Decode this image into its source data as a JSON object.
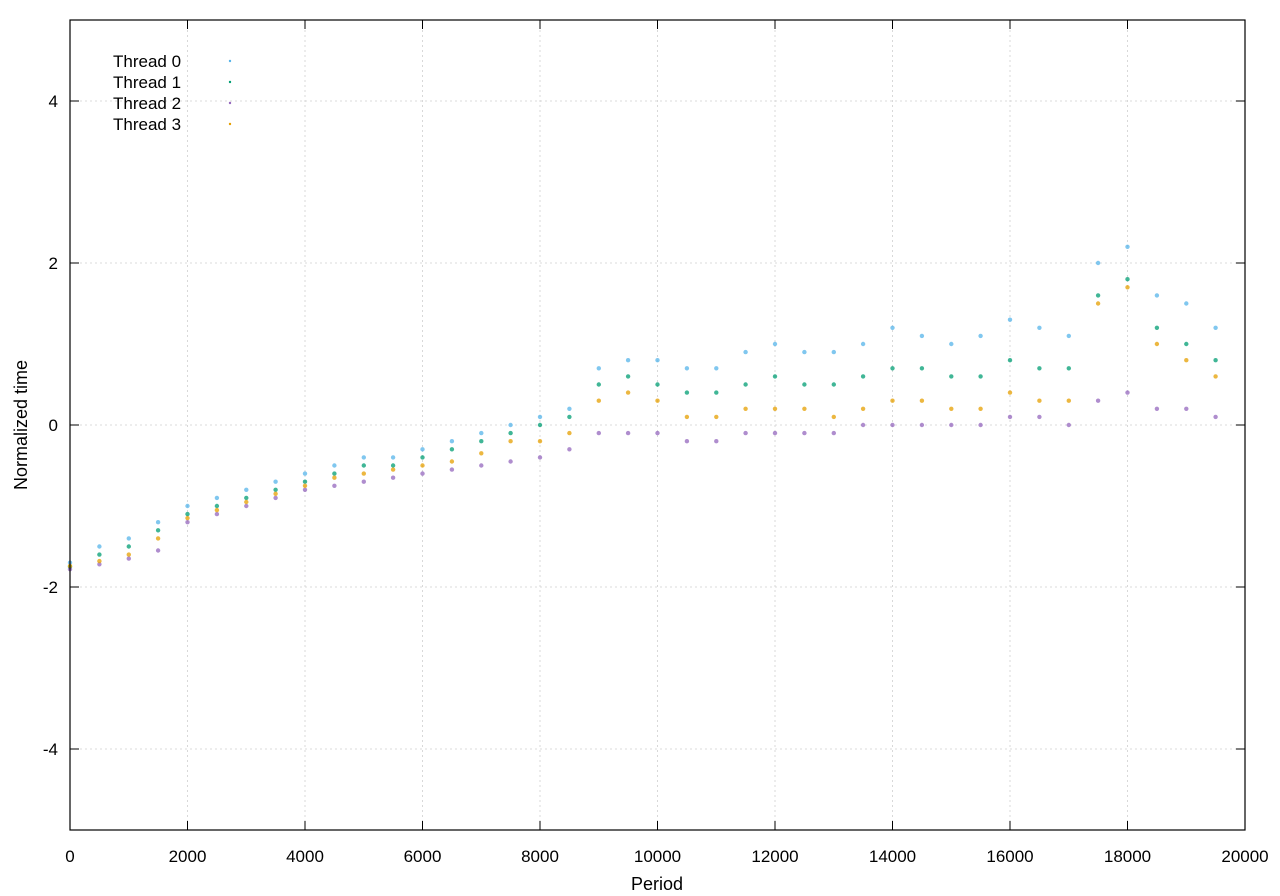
{
  "chart_data": {
    "type": "scatter",
    "title": "",
    "xlabel": "Period",
    "ylabel": "Normalized time",
    "xlim": [
      0,
      20000
    ],
    "ylim": [
      -5,
      5
    ],
    "xticks": [
      0,
      2000,
      4000,
      6000,
      8000,
      10000,
      12000,
      14000,
      16000,
      18000,
      20000
    ],
    "yticks": [
      -4,
      -2,
      0,
      2,
      4
    ],
    "xtick_labels": [
      "0",
      "2000",
      "4000",
      "6000",
      "8000",
      "10000",
      "12000",
      "14000",
      "16000",
      "18000",
      "20000"
    ],
    "ytick_labels": [
      "-4",
      "-2",
      "0",
      "2",
      "4"
    ],
    "grid": true,
    "legend_position": "top-left",
    "series": [
      {
        "name": "Thread 0",
        "color": "#56b4e9",
        "x": [
          0,
          500,
          1000,
          1500,
          2000,
          2500,
          3000,
          3500,
          4000,
          4500,
          5000,
          5500,
          6000,
          6500,
          7000,
          7500,
          8000,
          8500,
          9000,
          9500,
          10000,
          10500,
          11000,
          11500,
          12000,
          12500,
          13000,
          13500,
          14000,
          14500,
          15000,
          15500,
          16000,
          16500,
          17000,
          17500,
          18000,
          18500,
          19000,
          19500
        ],
        "y": [
          -1.7,
          -1.5,
          -1.4,
          -1.2,
          -1.0,
          -0.9,
          -0.8,
          -0.7,
          -0.6,
          -0.5,
          -0.4,
          -0.4,
          -0.3,
          -0.2,
          -0.1,
          0.0,
          0.1,
          0.2,
          0.7,
          0.8,
          0.8,
          0.7,
          0.7,
          0.9,
          1.0,
          0.9,
          0.9,
          1.0,
          1.2,
          1.1,
          1.0,
          1.1,
          1.3,
          1.2,
          1.1,
          2.0,
          2.2,
          1.6,
          1.5,
          1.2
        ]
      },
      {
        "name": "Thread 1",
        "color": "#009e73",
        "x": [
          0,
          500,
          1000,
          1500,
          2000,
          2500,
          3000,
          3500,
          4000,
          4500,
          5000,
          5500,
          6000,
          6500,
          7000,
          7500,
          8000,
          8500,
          9000,
          9500,
          10000,
          10500,
          11000,
          11500,
          12000,
          12500,
          13000,
          13500,
          14000,
          14500,
          15000,
          15500,
          16000,
          16500,
          17000,
          17500,
          18000,
          18500,
          19000,
          19500
        ],
        "y": [
          -1.75,
          -1.6,
          -1.5,
          -1.3,
          -1.1,
          -1.0,
          -0.9,
          -0.8,
          -0.7,
          -0.6,
          -0.5,
          -0.5,
          -0.4,
          -0.3,
          -0.2,
          -0.1,
          0.0,
          0.1,
          0.5,
          0.6,
          0.5,
          0.4,
          0.4,
          0.5,
          0.6,
          0.5,
          0.5,
          0.6,
          0.7,
          0.7,
          0.6,
          0.6,
          0.8,
          0.7,
          0.7,
          1.6,
          1.8,
          1.2,
          1.0,
          0.8
        ]
      },
      {
        "name": "Thread 2",
        "color": "#9467bd",
        "x": [
          0,
          500,
          1000,
          1500,
          2000,
          2500,
          3000,
          3500,
          4000,
          4500,
          5000,
          5500,
          6000,
          6500,
          7000,
          7500,
          8000,
          8500,
          9000,
          9500,
          10000,
          10500,
          11000,
          11500,
          12000,
          12500,
          13000,
          13500,
          14000,
          14500,
          15000,
          15500,
          16000,
          16500,
          17000,
          17500,
          18000,
          18500,
          19000,
          19500
        ],
        "y": [
          -1.78,
          -1.72,
          -1.65,
          -1.55,
          -1.2,
          -1.1,
          -1.0,
          -0.9,
          -0.8,
          -0.75,
          -0.7,
          -0.65,
          -0.6,
          -0.55,
          -0.5,
          -0.45,
          -0.4,
          -0.3,
          -0.1,
          -0.1,
          -0.1,
          -0.2,
          -0.2,
          -0.1,
          -0.1,
          -0.1,
          -0.1,
          0.0,
          0.0,
          0.0,
          0.0,
          0.0,
          0.1,
          0.1,
          0.0,
          0.3,
          0.4,
          0.2,
          0.2,
          0.1
        ]
      },
      {
        "name": "Thread 3",
        "color": "#e69f00",
        "x": [
          0,
          500,
          1000,
          1500,
          2000,
          2500,
          3000,
          3500,
          4000,
          4500,
          5000,
          5500,
          6000,
          6500,
          7000,
          7500,
          8000,
          8500,
          9000,
          9500,
          10000,
          10500,
          11000,
          11500,
          12000,
          12500,
          13000,
          13500,
          14000,
          14500,
          15000,
          15500,
          16000,
          16500,
          17000,
          17500,
          18000,
          18500,
          19000,
          19500
        ],
        "y": [
          -1.74,
          -1.68,
          -1.6,
          -1.4,
          -1.15,
          -1.05,
          -0.95,
          -0.85,
          -0.75,
          -0.65,
          -0.6,
          -0.55,
          -0.5,
          -0.45,
          -0.35,
          -0.2,
          -0.2,
          -0.1,
          0.3,
          0.4,
          0.3,
          0.1,
          0.1,
          0.2,
          0.2,
          0.2,
          0.1,
          0.2,
          0.3,
          0.3,
          0.2,
          0.2,
          0.4,
          0.3,
          0.3,
          1.5,
          1.7,
          1.0,
          0.8,
          0.6
        ]
      }
    ]
  }
}
